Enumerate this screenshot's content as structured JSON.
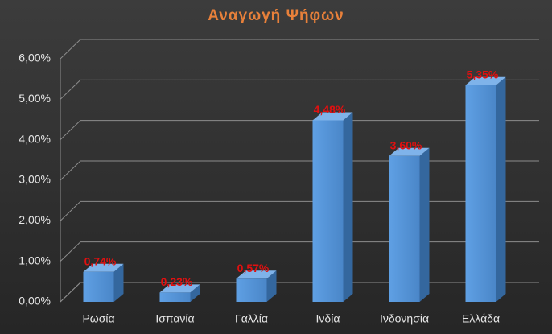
{
  "chart_data": {
    "type": "bar",
    "title": "Αναγωγή Ψήφων",
    "categories": [
      "Ρωσία",
      "Ισπανία",
      "Γαλλία",
      "Ινδία",
      "Ινδονησία",
      "Ελλάδα"
    ],
    "values": [
      0.74,
      0.23,
      0.57,
      4.48,
      3.6,
      5.35
    ],
    "value_labels": [
      "0,74%",
      "0,23%",
      "0,57%",
      "4,48%",
      "3,60%",
      "5,35%"
    ],
    "color": "#4f8fd6",
    "ylim": [
      0,
      6
    ],
    "yticks": [
      {
        "value": 0,
        "label": "0,00%"
      },
      {
        "value": 1,
        "label": "1,00%"
      },
      {
        "value": 2,
        "label": "2,00%"
      },
      {
        "value": 3,
        "label": "3,00%"
      },
      {
        "value": 4,
        "label": "4,00%"
      },
      {
        "value": 5,
        "label": "5,00%"
      },
      {
        "value": 6,
        "label": "6,00%"
      }
    ],
    "grid": true
  }
}
